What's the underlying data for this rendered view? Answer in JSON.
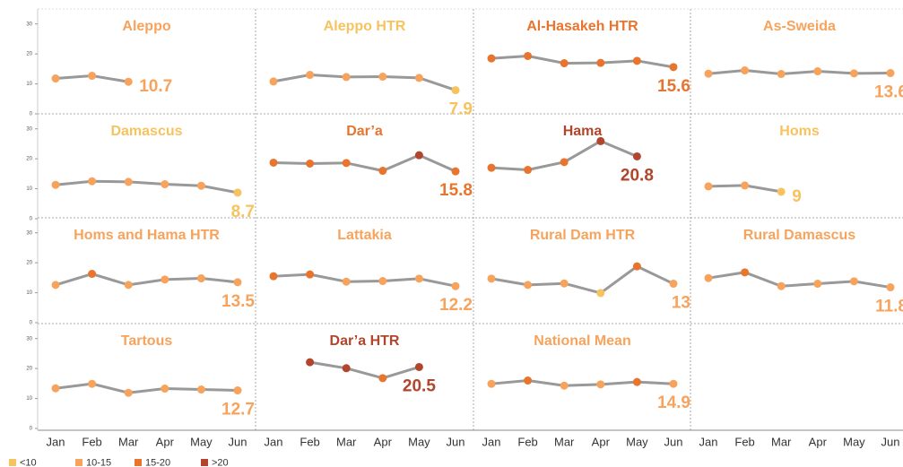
{
  "chart_data": {
    "type": "line",
    "categories": [
      "Jan",
      "Feb",
      "Mar",
      "Apr",
      "May",
      "Jun"
    ],
    "ylim": [
      0,
      35
    ],
    "yticks": [
      0,
      10,
      20,
      30
    ],
    "line_color": "#999999",
    "panels": [
      {
        "title": "Aleppo",
        "values": [
          11.8,
          12.7,
          10.7,
          null,
          null,
          null
        ],
        "colors": [
          "#f7a35c",
          "#f7a35c",
          "#f7a35c",
          null,
          null,
          null
        ]
      },
      {
        "title": "Aleppo HTR",
        "values": [
          10.8,
          13.0,
          12.3,
          12.4,
          12.0,
          7.9
        ],
        "colors": [
          "#f7a35c",
          "#f7a35c",
          "#f7a35c",
          "#f7a35c",
          "#f7a35c",
          "#f6c35f"
        ]
      },
      {
        "title": "Al-Hasakeh HTR",
        "values": [
          18.5,
          19.3,
          16.9,
          17.0,
          17.7,
          15.6
        ],
        "colors": [
          "#e8742d",
          "#e8742d",
          "#e8742d",
          "#e8742d",
          "#e8742d",
          "#e8742d"
        ]
      },
      {
        "title": "As-Sweida",
        "values": [
          13.4,
          14.5,
          13.3,
          14.2,
          13.5,
          13.6
        ],
        "colors": [
          "#f7a35c",
          "#f7a35c",
          "#f7a35c",
          "#f7a35c",
          "#f7a35c",
          "#f7a35c"
        ]
      },
      {
        "title": "Damascus",
        "values": [
          11.3,
          12.5,
          12.3,
          11.5,
          11.0,
          8.7
        ],
        "colors": [
          "#f7a35c",
          "#f7a35c",
          "#f7a35c",
          "#f7a35c",
          "#f7a35c",
          "#f6c35f"
        ]
      },
      {
        "title": "Dar’a",
        "values": [
          18.7,
          18.4,
          18.6,
          16.0,
          21.2,
          15.8
        ],
        "colors": [
          "#e8742d",
          "#e8742d",
          "#e8742d",
          "#e8742d",
          "#b2452b",
          "#e8742d"
        ]
      },
      {
        "title": "Hama",
        "values": [
          17.0,
          16.3,
          18.9,
          25.9,
          20.8,
          null
        ],
        "colors": [
          "#e8742d",
          "#e8742d",
          "#e8742d",
          "#b2452b",
          "#b2452b",
          null
        ]
      },
      {
        "title": "Homs",
        "values": [
          10.8,
          11.1,
          9.0,
          null,
          null,
          null
        ],
        "colors": [
          "#f7a35c",
          "#f7a35c",
          "#f6c35f",
          null,
          null,
          null
        ]
      },
      {
        "title": "Homs and Hama HTR",
        "values": [
          12.6,
          16.3,
          12.6,
          14.4,
          14.8,
          13.5
        ],
        "colors": [
          "#f7a35c",
          "#e8742d",
          "#f7a35c",
          "#f7a35c",
          "#f7a35c",
          "#f7a35c"
        ]
      },
      {
        "title": "Lattakia",
        "values": [
          15.5,
          16.1,
          13.7,
          13.9,
          14.7,
          12.2
        ],
        "colors": [
          "#e8742d",
          "#e8742d",
          "#f7a35c",
          "#f7a35c",
          "#f7a35c",
          "#f7a35c"
        ]
      },
      {
        "title": "Rural Dam HTR",
        "values": [
          14.7,
          12.6,
          13.1,
          9.9,
          18.8,
          13.0
        ],
        "colors": [
          "#f7a35c",
          "#f7a35c",
          "#f7a35c",
          "#f6c35f",
          "#e8742d",
          "#f7a35c"
        ]
      },
      {
        "title": "Rural Damascus",
        "values": [
          14.9,
          16.8,
          12.2,
          13.0,
          13.8,
          11.8
        ],
        "colors": [
          "#f7a35c",
          "#e8742d",
          "#f7a35c",
          "#f7a35c",
          "#f7a35c",
          "#f7a35c"
        ]
      },
      {
        "title": "Tartous",
        "values": [
          13.4,
          14.9,
          11.9,
          13.3,
          13.0,
          12.7
        ],
        "colors": [
          "#f7a35c",
          "#f7a35c",
          "#f7a35c",
          "#f7a35c",
          "#f7a35c",
          "#f7a35c"
        ]
      },
      {
        "title": "Dar’a HTR",
        "values": [
          null,
          22.1,
          20.1,
          16.8,
          20.5,
          null
        ],
        "colors": [
          null,
          "#b2452b",
          "#b2452b",
          "#e8742d",
          "#b2452b",
          null
        ]
      },
      {
        "title": "National Mean",
        "values": [
          14.9,
          16.0,
          14.3,
          14.7,
          15.5,
          14.9
        ],
        "colors": [
          "#f7a35c",
          "#e8742d",
          "#f7a35c",
          "#f7a35c",
          "#e8742d",
          "#f7a35c"
        ]
      }
    ],
    "legend": [
      {
        "label": "<10",
        "color": "#f6c35f"
      },
      {
        "label": "10-15",
        "color": "#f7a35c"
      },
      {
        "label": "15-20",
        "color": "#e8742d"
      },
      {
        "label": ">20",
        "color": "#b2452b"
      }
    ]
  }
}
